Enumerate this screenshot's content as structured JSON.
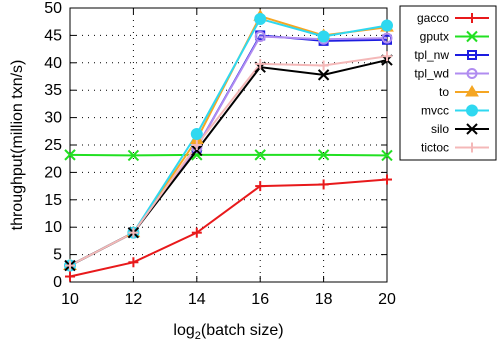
{
  "chart_data": {
    "type": "line",
    "xlabel": "log",
    "xlabel_sub": "2",
    "xlabel_rest": "(batch size)",
    "ylabel": "throughput(million txn/s)",
    "x": [
      10,
      12,
      14,
      16,
      18,
      20
    ],
    "xticks": [
      "10",
      "12",
      "14",
      "16",
      "18",
      "20"
    ],
    "yticks": [
      "0",
      "5",
      "10",
      "15",
      "20",
      "25",
      "30",
      "35",
      "40",
      "45",
      "50"
    ],
    "xlim": [
      10,
      20
    ],
    "ylim": [
      0,
      50
    ],
    "grid": true,
    "legend_position": "top-right (outside)",
    "series": [
      {
        "name": "gacco",
        "color": "#e8191b",
        "marker": "plus",
        "values": [
          1.0,
          3.6,
          9.0,
          17.5,
          17.8,
          18.7
        ]
      },
      {
        "name": "gputx",
        "color": "#22e022",
        "marker": "x",
        "values": [
          23.2,
          23.1,
          23.2,
          23.2,
          23.2,
          23.1
        ]
      },
      {
        "name": "tpl_nw",
        "color": "#1c1ce0",
        "marker": "square",
        "values": [
          3.0,
          9.0,
          24.5,
          45.0,
          44.0,
          44.2
        ]
      },
      {
        "name": "tpl_wd",
        "color": "#b08cf0",
        "marker": "circle",
        "values": [
          3.0,
          9.0,
          24.5,
          44.8,
          44.3,
          44.5
        ]
      },
      {
        "name": "to",
        "color": "#f5a623",
        "marker": "triangle",
        "values": [
          3.0,
          9.0,
          26.0,
          48.5,
          45.0,
          46.5
        ]
      },
      {
        "name": "mvcc",
        "color": "#2fd8f0",
        "marker": "dot",
        "values": [
          3.0,
          9.0,
          27.0,
          48.0,
          44.8,
          46.8
        ]
      },
      {
        "name": "silo",
        "color": "#000000",
        "marker": "x",
        "values": [
          3.0,
          9.0,
          24.0,
          39.2,
          37.8,
          40.5
        ]
      },
      {
        "name": "tictoc",
        "color": "#f4b8b8",
        "marker": "plus",
        "values": [
          3.0,
          9.0,
          25.0,
          39.8,
          39.5,
          41.2
        ]
      }
    ]
  }
}
